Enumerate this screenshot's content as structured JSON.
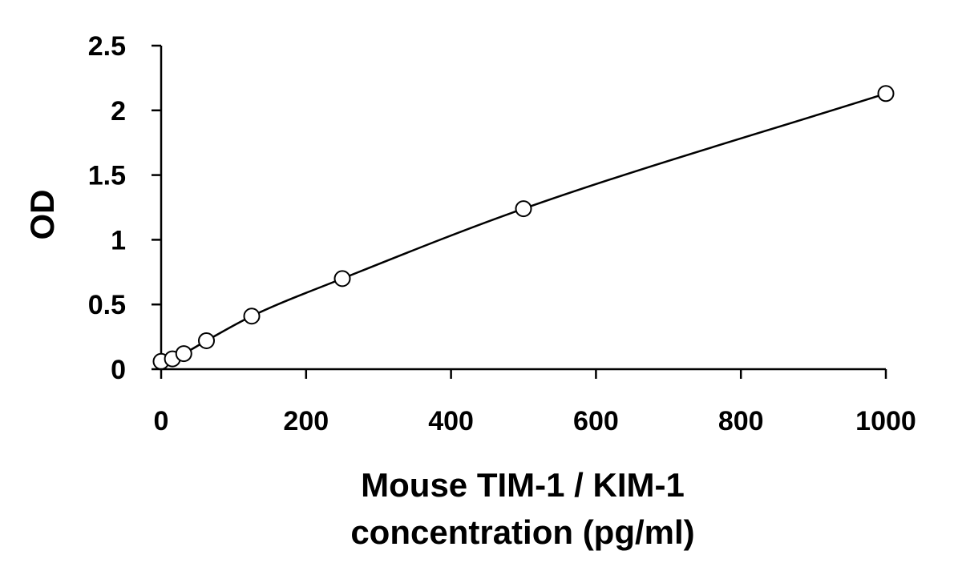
{
  "chart_data": {
    "type": "scatter",
    "title": "",
    "xlabel_lines": [
      "Mouse TIM-1 / KIM-1",
      "concentration (pg/ml)"
    ],
    "ylabel": "OD",
    "xlim": [
      0,
      1000
    ],
    "ylim": [
      0,
      2.5
    ],
    "x_ticks": [
      0,
      200,
      400,
      600,
      800,
      1000
    ],
    "y_ticks": [
      0,
      0.5,
      1,
      1.5,
      2,
      2.5
    ],
    "x_tick_labels": [
      "0",
      "200",
      "400",
      "600",
      "800",
      "1000"
    ],
    "y_tick_labels": [
      "0",
      "0.5",
      "1",
      "1.5",
      "2",
      "2.5"
    ],
    "grid": false,
    "legend": "none",
    "series": [
      {
        "x": [
          0,
          15.6,
          31.25,
          62.5,
          125,
          250,
          500,
          1000
        ],
        "y": [
          0.06,
          0.08,
          0.12,
          0.22,
          0.41,
          0.7,
          1.24,
          2.13
        ],
        "marker": "open-circle",
        "fit_line": true
      }
    ],
    "colors": {
      "line": "#000000",
      "marker_stroke": "#000000",
      "marker_fill": "#ffffff",
      "background": "#ffffff"
    }
  }
}
